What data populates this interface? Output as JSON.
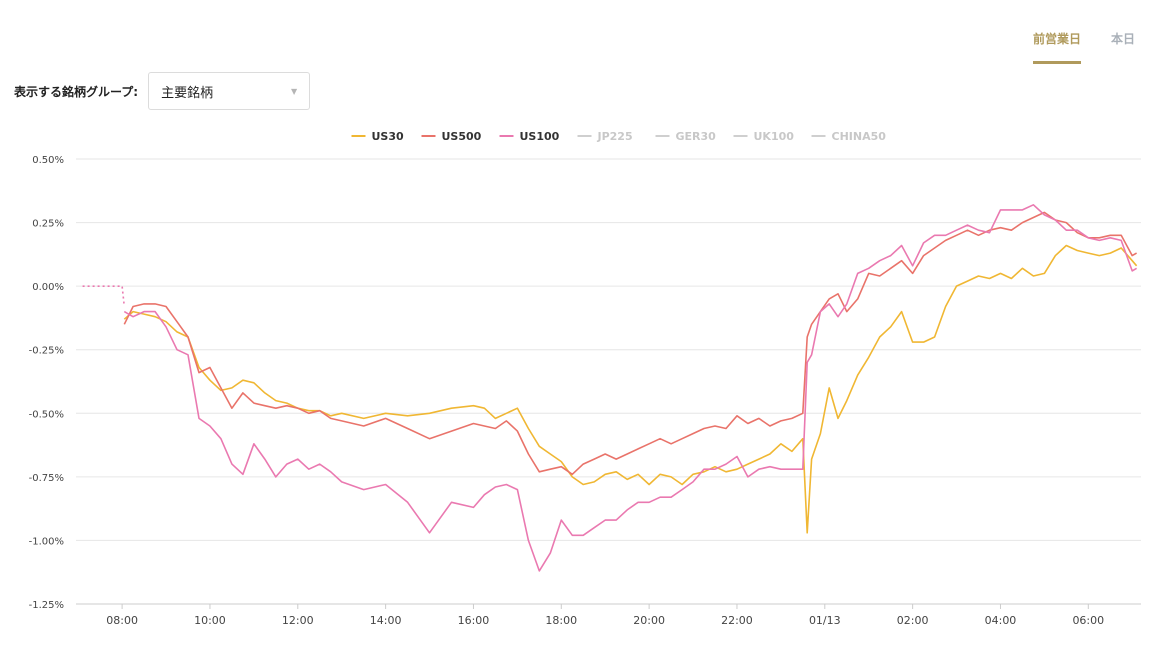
{
  "tabs": {
    "previous": "前営業日",
    "today": "本日"
  },
  "group_selector": {
    "label": "表示する銘柄グループ:",
    "value": "主要銘柄"
  },
  "chart_data": {
    "type": "line",
    "y_unit": "%",
    "ylim": [
      -1.25,
      0.5
    ],
    "y_ticks": [
      0.5,
      0.25,
      0,
      -0.25,
      -0.5,
      -0.75,
      -1.0,
      -1.25
    ],
    "y_tick_labels": [
      "0.50%",
      "0.25%",
      "0.00%",
      "-0.25%",
      "-0.50%",
      "-0.75%",
      "-1.00%",
      "-1.25%"
    ],
    "xlim": [
      6.95,
      31.2
    ],
    "x_ticks": [
      8,
      10,
      12,
      14,
      16,
      18,
      20,
      22,
      24,
      26,
      28,
      30
    ],
    "x_tick_labels": [
      "08:00",
      "10:00",
      "12:00",
      "14:00",
      "16:00",
      "18:00",
      "20:00",
      "22:00",
      "01/13",
      "02:00",
      "04:00",
      "06:00"
    ],
    "grid": true,
    "legend_position": "top-center",
    "legend": [
      {
        "name": "US30",
        "color": "#f0b733",
        "active": true
      },
      {
        "name": "US500",
        "color": "#e9736a",
        "active": true
      },
      {
        "name": "US100",
        "color": "#ea79b0",
        "active": true
      },
      {
        "name": "JP225",
        "color": "#cfcfcf",
        "active": false
      },
      {
        "name": "GER30",
        "color": "#cfcfcf",
        "active": false
      },
      {
        "name": "UK100",
        "color": "#cfcfcf",
        "active": false
      },
      {
        "name": "CHINA50",
        "color": "#cfcfcf",
        "active": false
      }
    ],
    "prelude": {
      "color": "#ea79b0",
      "x": [
        7.1,
        8.0,
        8.05
      ],
      "y": [
        0.0,
        0.0,
        -0.08
      ]
    },
    "series": [
      {
        "name": "US30",
        "color": "#f0b733",
        "x": [
          8.05,
          8.25,
          8.5,
          8.75,
          9.0,
          9.25,
          9.5,
          9.75,
          10.0,
          10.25,
          10.5,
          10.75,
          11.0,
          11.25,
          11.5,
          11.75,
          12.0,
          12.25,
          12.5,
          12.75,
          13.0,
          13.5,
          14.0,
          14.5,
          15.0,
          15.5,
          16.0,
          16.25,
          16.5,
          16.75,
          17.0,
          17.25,
          17.5,
          17.75,
          18.0,
          18.25,
          18.5,
          18.75,
          19.0,
          19.25,
          19.5,
          19.75,
          20.0,
          20.25,
          20.5,
          20.75,
          21.0,
          21.25,
          21.5,
          21.75,
          22.0,
          22.25,
          22.5,
          22.75,
          23.0,
          23.25,
          23.5,
          23.6,
          23.7,
          23.9,
          24.1,
          24.3,
          24.5,
          24.75,
          25.0,
          25.25,
          25.5,
          25.75,
          26.0,
          26.25,
          26.5,
          26.75,
          27.0,
          27.25,
          27.5,
          27.75,
          28.0,
          28.25,
          28.5,
          28.75,
          29.0,
          29.25,
          29.5,
          29.75,
          30.0,
          30.25,
          30.5,
          30.75,
          31.0,
          31.1
        ],
        "y": [
          -0.13,
          -0.1,
          -0.11,
          -0.12,
          -0.14,
          -0.18,
          -0.2,
          -0.32,
          -0.37,
          -0.41,
          -0.4,
          -0.37,
          -0.38,
          -0.42,
          -0.45,
          -0.46,
          -0.48,
          -0.49,
          -0.49,
          -0.51,
          -0.5,
          -0.52,
          -0.5,
          -0.51,
          -0.5,
          -0.48,
          -0.47,
          -0.48,
          -0.52,
          -0.5,
          -0.48,
          -0.56,
          -0.63,
          -0.66,
          -0.69,
          -0.75,
          -0.78,
          -0.77,
          -0.74,
          -0.73,
          -0.76,
          -0.74,
          -0.78,
          -0.74,
          -0.75,
          -0.78,
          -0.74,
          -0.73,
          -0.71,
          -0.73,
          -0.72,
          -0.7,
          -0.68,
          -0.66,
          -0.62,
          -0.65,
          -0.6,
          -0.97,
          -0.68,
          -0.58,
          -0.4,
          -0.52,
          -0.45,
          -0.35,
          -0.28,
          -0.2,
          -0.16,
          -0.1,
          -0.22,
          -0.22,
          -0.2,
          -0.08,
          0.0,
          0.02,
          0.04,
          0.03,
          0.05,
          0.03,
          0.07,
          0.04,
          0.05,
          0.12,
          0.16,
          0.14,
          0.13,
          0.12,
          0.13,
          0.15,
          0.1,
          0.08
        ]
      },
      {
        "name": "US500",
        "color": "#e9736a",
        "x": [
          8.05,
          8.25,
          8.5,
          8.75,
          9.0,
          9.25,
          9.5,
          9.75,
          10.0,
          10.25,
          10.5,
          10.75,
          11.0,
          11.25,
          11.5,
          11.75,
          12.0,
          12.25,
          12.5,
          12.75,
          13.0,
          13.5,
          14.0,
          14.5,
          15.0,
          15.5,
          16.0,
          16.25,
          16.5,
          16.75,
          17.0,
          17.25,
          17.5,
          17.75,
          18.0,
          18.25,
          18.5,
          18.75,
          19.0,
          19.25,
          19.5,
          19.75,
          20.0,
          20.25,
          20.5,
          20.75,
          21.0,
          21.25,
          21.5,
          21.75,
          22.0,
          22.25,
          22.5,
          22.75,
          23.0,
          23.25,
          23.5,
          23.6,
          23.7,
          23.9,
          24.1,
          24.3,
          24.5,
          24.75,
          25.0,
          25.25,
          25.5,
          25.75,
          26.0,
          26.25,
          26.5,
          26.75,
          27.0,
          27.25,
          27.5,
          27.75,
          28.0,
          28.25,
          28.5,
          28.75,
          29.0,
          29.25,
          29.5,
          29.75,
          30.0,
          30.25,
          30.5,
          30.75,
          31.0,
          31.1
        ],
        "y": [
          -0.15,
          -0.08,
          -0.07,
          -0.07,
          -0.08,
          -0.14,
          -0.2,
          -0.34,
          -0.32,
          -0.4,
          -0.48,
          -0.42,
          -0.46,
          -0.47,
          -0.48,
          -0.47,
          -0.48,
          -0.5,
          -0.49,
          -0.52,
          -0.53,
          -0.55,
          -0.52,
          -0.56,
          -0.6,
          -0.57,
          -0.54,
          -0.55,
          -0.56,
          -0.53,
          -0.57,
          -0.66,
          -0.73,
          -0.72,
          -0.71,
          -0.74,
          -0.7,
          -0.68,
          -0.66,
          -0.68,
          -0.66,
          -0.64,
          -0.62,
          -0.6,
          -0.62,
          -0.6,
          -0.58,
          -0.56,
          -0.55,
          -0.56,
          -0.51,
          -0.54,
          -0.52,
          -0.55,
          -0.53,
          -0.52,
          -0.5,
          -0.2,
          -0.15,
          -0.1,
          -0.05,
          -0.03,
          -0.1,
          -0.05,
          0.05,
          0.04,
          0.07,
          0.1,
          0.05,
          0.12,
          0.15,
          0.18,
          0.2,
          0.22,
          0.2,
          0.22,
          0.23,
          0.22,
          0.25,
          0.27,
          0.29,
          0.26,
          0.25,
          0.21,
          0.19,
          0.19,
          0.2,
          0.2,
          0.12,
          0.13
        ]
      },
      {
        "name": "US100",
        "color": "#ea79b0",
        "x": [
          8.05,
          8.25,
          8.5,
          8.75,
          9.0,
          9.25,
          9.5,
          9.75,
          10.0,
          10.25,
          10.5,
          10.75,
          11.0,
          11.25,
          11.5,
          11.75,
          12.0,
          12.25,
          12.5,
          12.75,
          13.0,
          13.5,
          14.0,
          14.5,
          15.0,
          15.5,
          16.0,
          16.25,
          16.5,
          16.75,
          17.0,
          17.25,
          17.5,
          17.75,
          18.0,
          18.25,
          18.5,
          18.75,
          19.0,
          19.25,
          19.5,
          19.75,
          20.0,
          20.25,
          20.5,
          20.75,
          21.0,
          21.25,
          21.5,
          21.75,
          22.0,
          22.25,
          22.5,
          22.75,
          23.0,
          23.25,
          23.5,
          23.6,
          23.7,
          23.9,
          24.1,
          24.3,
          24.5,
          24.75,
          25.0,
          25.25,
          25.5,
          25.75,
          26.0,
          26.25,
          26.5,
          26.75,
          27.0,
          27.25,
          27.5,
          27.75,
          28.0,
          28.25,
          28.5,
          28.75,
          29.0,
          29.25,
          29.5,
          29.75,
          30.0,
          30.25,
          30.5,
          30.75,
          31.0,
          31.1
        ],
        "y": [
          -0.1,
          -0.12,
          -0.1,
          -0.1,
          -0.16,
          -0.25,
          -0.27,
          -0.52,
          -0.55,
          -0.6,
          -0.7,
          -0.74,
          -0.62,
          -0.68,
          -0.75,
          -0.7,
          -0.68,
          -0.72,
          -0.7,
          -0.73,
          -0.77,
          -0.8,
          -0.78,
          -0.85,
          -0.97,
          -0.85,
          -0.87,
          -0.82,
          -0.79,
          -0.78,
          -0.8,
          -1.0,
          -1.12,
          -1.05,
          -0.92,
          -0.98,
          -0.98,
          -0.95,
          -0.92,
          -0.92,
          -0.88,
          -0.85,
          -0.85,
          -0.83,
          -0.83,
          -0.8,
          -0.77,
          -0.72,
          -0.72,
          -0.7,
          -0.67,
          -0.75,
          -0.72,
          -0.71,
          -0.72,
          -0.72,
          -0.72,
          -0.3,
          -0.27,
          -0.1,
          -0.07,
          -0.12,
          -0.07,
          0.05,
          0.07,
          0.1,
          0.12,
          0.16,
          0.08,
          0.17,
          0.2,
          0.2,
          0.22,
          0.24,
          0.22,
          0.21,
          0.3,
          0.3,
          0.3,
          0.32,
          0.28,
          0.26,
          0.22,
          0.22,
          0.19,
          0.18,
          0.19,
          0.18,
          0.06,
          0.07
        ]
      }
    ]
  }
}
